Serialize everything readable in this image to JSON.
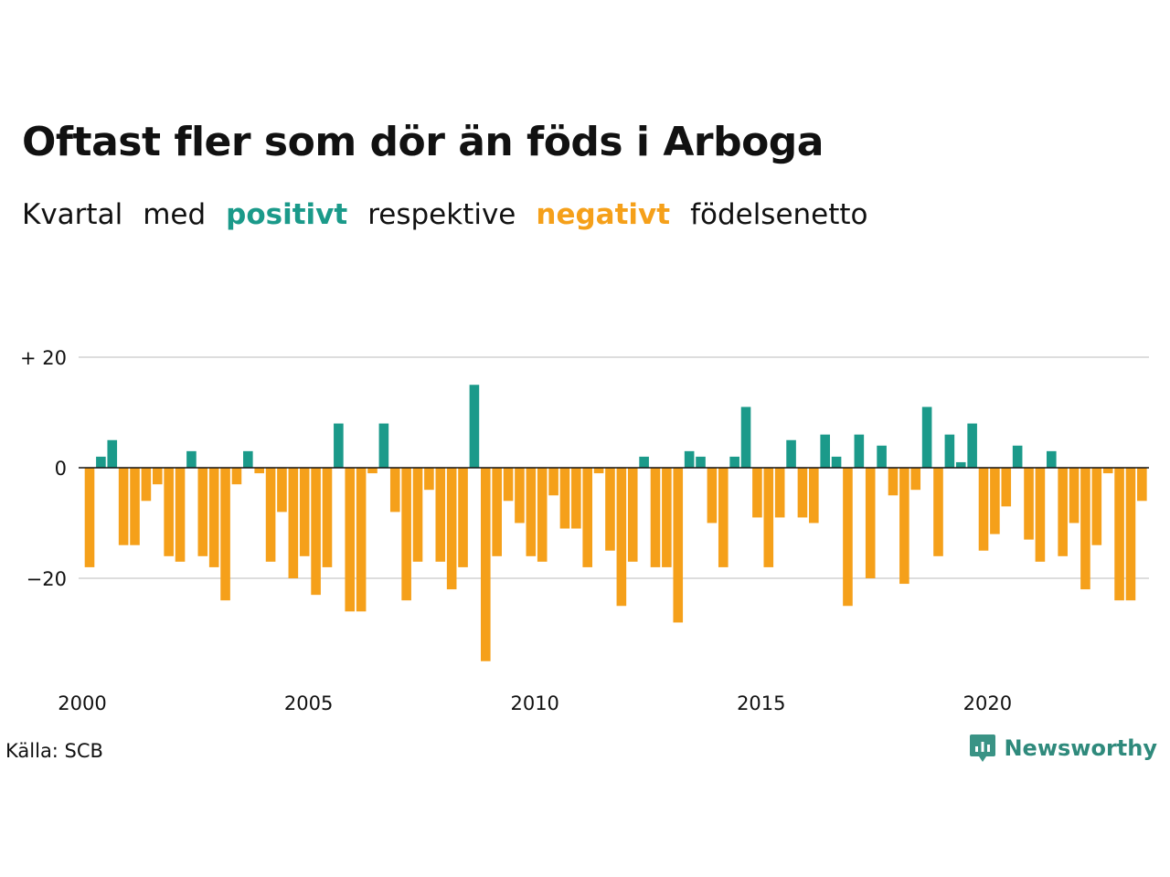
{
  "chart_data": {
    "type": "bar",
    "title": "Oftast fler som dör än föds i Arboga",
    "subtitle_parts": [
      "Kvartal",
      "med",
      "positivt",
      "respektive",
      "negativt",
      "födelsenetto"
    ],
    "x_start_year": 2000,
    "periods_per_year": 4,
    "x_ticks": [
      "2000",
      "2005",
      "2010",
      "2015",
      "2020"
    ],
    "y_ticks": [
      {
        "value": 20,
        "label": "+ 20"
      },
      {
        "value": 0,
        "label": "0"
      },
      {
        "value": -20,
        "label": "−20"
      }
    ],
    "ylim": [
      -35,
      20
    ],
    "grid": true,
    "values": [
      -18,
      2,
      5,
      -14,
      -14,
      -6,
      -3,
      -16,
      -17,
      3,
      -16,
      -18,
      -24,
      -3,
      3,
      -1,
      -17,
      -8,
      -20,
      -16,
      -23,
      -18,
      8,
      -26,
      -26,
      -1,
      8,
      -8,
      -24,
      -17,
      -4,
      -17,
      -22,
      -18,
      15,
      -35,
      -16,
      -6,
      -10,
      -16,
      -17,
      -5,
      -11,
      -11,
      -18,
      -1,
      -15,
      -25,
      -17,
      2,
      -18,
      -18,
      -28,
      3,
      2,
      -10,
      -18,
      2,
      11,
      -9,
      -18,
      -9,
      5,
      -9,
      -10,
      6,
      2,
      -25,
      6,
      -20,
      4,
      -5,
      -21,
      -4,
      11,
      -16,
      6,
      1,
      8,
      -15,
      -12,
      -7,
      4,
      -13,
      -17,
      3,
      -16,
      -10,
      -22,
      -14,
      -1,
      -24,
      -24,
      -6
    ],
    "colors": {
      "positive": "#1b9a8a",
      "negative": "#f5a01a"
    }
  },
  "source": "Källa: SCB",
  "brand": {
    "name": "Newsworthy",
    "icon": "newsworthy-logo-icon",
    "color": "#2f8a7c"
  }
}
